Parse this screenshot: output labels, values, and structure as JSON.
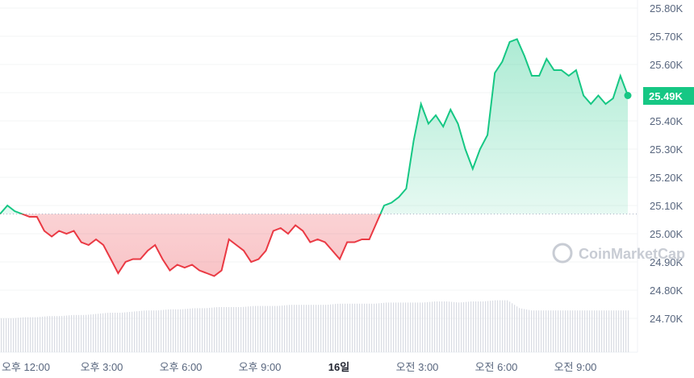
{
  "chart_data": {
    "type": "line",
    "title": "",
    "xlabel": "",
    "ylabel": "",
    "ylim": [
      24.6,
      25.82
    ],
    "y_unit": "K",
    "y_ticks": [
      "25.80K",
      "25.70K",
      "25.60K",
      "25.50K",
      "25.40K",
      "25.30K",
      "25.20K",
      "25.10K",
      "25.00K",
      "24.90K",
      "24.80K",
      "24.70K"
    ],
    "x_ticks": [
      "오후 12:00",
      "오후 3:00",
      "오후 6:00",
      "오후 9:00",
      "16일",
      "오전 3:00",
      "오전 6:00",
      "오전 9:00"
    ],
    "x_tick_bold": "16일",
    "reference_price": 25.07,
    "current_price_label": "25.49K",
    "current_price": 25.49,
    "grid": true,
    "watermark": "CoinMarketCap",
    "colors": {
      "up": "#16c784",
      "down": "#ea3943",
      "volume": "#d9dce3"
    },
    "series": [
      {
        "values": [
          25.07,
          25.1,
          25.08,
          25.07,
          25.06,
          25.06,
          25.01,
          24.99,
          25.01,
          25.0,
          25.01,
          24.97,
          24.96,
          24.98,
          24.96,
          24.91,
          24.86,
          24.9,
          24.91,
          24.91,
          24.94,
          24.96,
          24.91,
          24.87,
          24.89,
          24.88,
          24.89,
          24.87,
          24.86,
          24.85,
          24.87,
          24.98,
          24.96,
          24.94,
          24.9,
          24.91,
          24.94,
          25.01,
          25.02,
          25.0,
          25.03,
          25.01,
          24.97,
          24.98,
          24.97,
          24.94,
          24.91,
          24.97,
          24.97,
          24.98,
          24.98,
          25.04,
          25.1,
          25.11,
          25.13,
          25.16,
          25.33,
          25.46,
          25.39,
          25.42,
          25.38,
          25.44,
          25.39,
          25.3,
          25.23,
          25.3,
          25.35,
          25.57,
          25.61,
          25.68,
          25.69,
          25.63,
          25.56,
          25.56,
          25.62,
          25.58,
          25.58,
          25.56,
          25.58,
          25.49,
          25.46,
          25.49,
          25.46,
          25.48,
          25.56,
          25.49
        ]
      }
    ],
    "volume": [
      30,
      30,
      31,
      31,
      32,
      32,
      33,
      33,
      34,
      35,
      35,
      36,
      37,
      37,
      38,
      38,
      39,
      39,
      40,
      40,
      40,
      41,
      41,
      41,
      42,
      42,
      42,
      42,
      43,
      43,
      43,
      43,
      44,
      44,
      44,
      44,
      45,
      45,
      44,
      45,
      45,
      46,
      46,
      39,
      37,
      37,
      37,
      37,
      37,
      37,
      37,
      37,
      37
    ]
  }
}
